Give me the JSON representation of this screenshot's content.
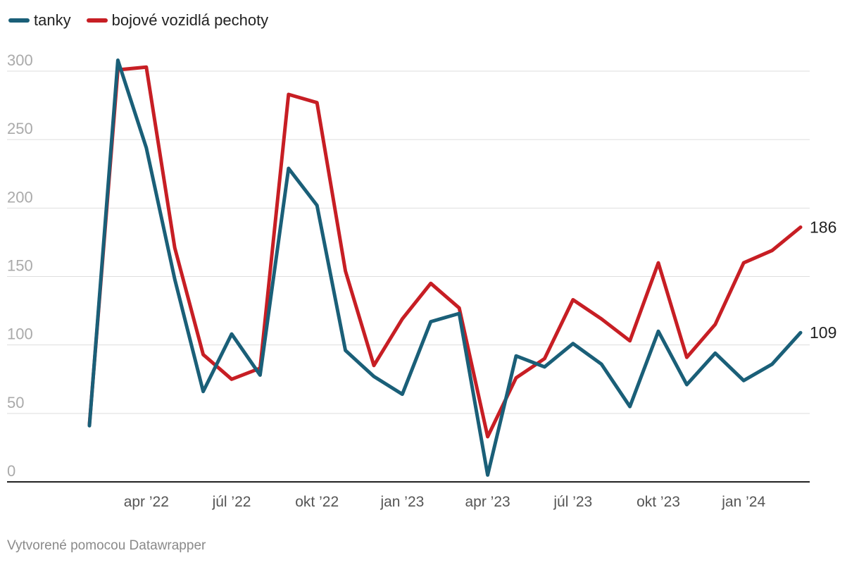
{
  "legend": [
    {
      "label": "tanky",
      "color": "#1a5f78"
    },
    {
      "label": "bojové vozidlá pechoty",
      "color": "#c71e24"
    }
  ],
  "chart_data": {
    "type": "line",
    "title": "",
    "xlabel": "",
    "ylabel": "",
    "ylim": [
      0,
      310
    ],
    "yticks": [
      0,
      50,
      100,
      150,
      200,
      250,
      300
    ],
    "xticks": [
      {
        "label": "apr ’22",
        "index": 2
      },
      {
        "label": "júl ’22",
        "index": 5
      },
      {
        "label": "okt ’22",
        "index": 8
      },
      {
        "label": "jan ’23",
        "index": 11
      },
      {
        "label": "apr ’23",
        "index": 14
      },
      {
        "label": "júl ’23",
        "index": 17
      },
      {
        "label": "okt ’23",
        "index": 20
      },
      {
        "label": "jan ’24",
        "index": 23
      }
    ],
    "x": [
      "feb 2022",
      "mar 2022",
      "apr 2022",
      "máj 2022",
      "jún 2022",
      "júl 2022",
      "aug 2022",
      "sep 2022",
      "okt 2022",
      "nov 2022",
      "dec 2022",
      "jan 2023",
      "feb 2023",
      "mar 2023",
      "apr 2023",
      "máj 2023",
      "jún 2023",
      "júl 2023",
      "aug 2023",
      "sep 2023",
      "okt 2023",
      "nov 2023",
      "dec 2023",
      "jan 2024",
      "feb 2024",
      "mar 2024"
    ],
    "series": [
      {
        "name": "tanky",
        "color": "#1a5f78",
        "values": [
          41,
          308,
          244,
          148,
          66,
          108,
          78,
          229,
          202,
          96,
          77,
          64,
          117,
          123,
          5,
          92,
          84,
          101,
          86,
          55,
          110,
          71,
          94,
          74,
          86,
          109
        ],
        "end_label": "109"
      },
      {
        "name": "bojové vozidlá pechoty",
        "color": "#c71e24",
        "values": [
          42,
          301,
          303,
          171,
          93,
          75,
          83,
          283,
          277,
          154,
          85,
          119,
          145,
          127,
          33,
          76,
          90,
          133,
          119,
          103,
          160,
          91,
          115,
          160,
          169,
          186
        ],
        "end_label": "186"
      }
    ]
  },
  "footer": "Vytvorené pomocou Datawrapper"
}
